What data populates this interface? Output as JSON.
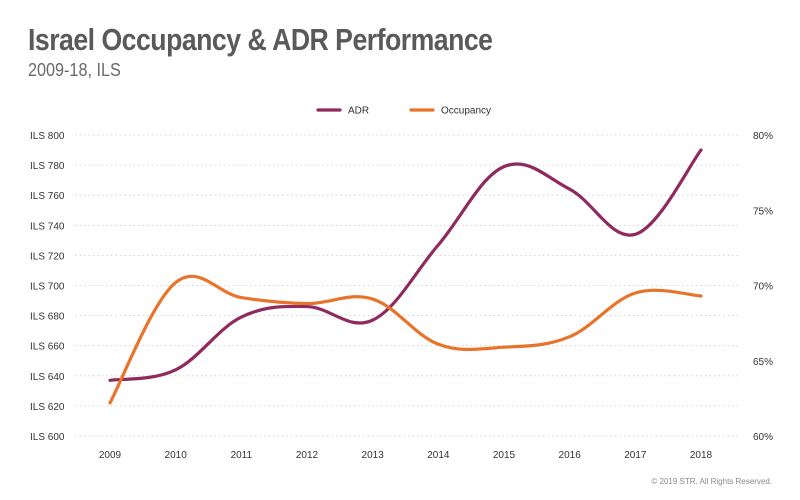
{
  "title": "Israel Occupancy & ADR Performance",
  "subtitle": "2009-18, ILS",
  "copyright": "© 2019 STR. All Rights Reserved.",
  "colors": {
    "adr": "#8e2a5e",
    "occupancy": "#e8742c",
    "grid": "#c8c8c8"
  },
  "chart_data": {
    "type": "line",
    "categories": [
      "2009",
      "2010",
      "2011",
      "2012",
      "2013",
      "2014",
      "2015",
      "2016",
      "2017",
      "2018"
    ],
    "series": [
      {
        "name": "ADR",
        "axis": "left",
        "values": [
          637,
          644,
          679,
          686,
          677,
          727,
          779,
          764,
          734,
          790
        ]
      },
      {
        "name": "Occupancy",
        "axis": "right",
        "values": [
          62.2,
          70.2,
          69.2,
          68.8,
          69.1,
          66.1,
          65.9,
          66.6,
          69.5,
          69.3
        ]
      }
    ],
    "y_left": {
      "min": 600,
      "max": 800,
      "ticks": [
        "ILS 800",
        "ILS 780",
        "ILS 760",
        "ILS 740",
        "ILS 720",
        "ILS 700",
        "ILS 680",
        "ILS 660",
        "ILS 640",
        "ILS 620",
        "ILS 600"
      ]
    },
    "y_right": {
      "min": 60,
      "max": 80,
      "ticks": [
        "80%",
        "75%",
        "70%",
        "65%",
        "60%"
      ]
    },
    "legend": [
      "ADR",
      "Occupancy"
    ],
    "legend_position": "top-center",
    "grid": true
  }
}
